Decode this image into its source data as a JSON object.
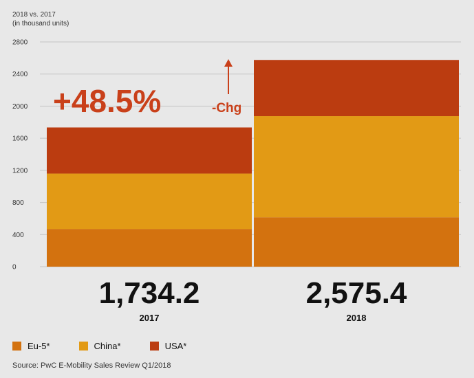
{
  "chart_data": {
    "type": "bar",
    "stacked": true,
    "subtitle_lines": [
      "2018 vs. 2017",
      "(in thousand units)"
    ],
    "categories": [
      "2017",
      "2018"
    ],
    "series": [
      {
        "name": "Eu-5*",
        "color": "#d3720f",
        "values": [
          470,
          615
        ]
      },
      {
        "name": "China*",
        "color": "#e29a15",
        "values": [
          690,
          1260
        ]
      },
      {
        "name": "USA*",
        "color": "#bb3c10",
        "values": [
          574.2,
          700.4
        ]
      }
    ],
    "totals": [
      "1,734.2",
      "2,575.4"
    ],
    "ylim": [
      0,
      2800
    ],
    "yticks": [
      0,
      400,
      800,
      1200,
      1600,
      2000,
      2400,
      2800
    ],
    "grid": true,
    "legend_position": "bottom-left",
    "annotation": {
      "value": "+48.5%",
      "label": "-Chg",
      "arrow": "up",
      "color": "#c9401a"
    },
    "source": "Source: PwC E-Mobility Sales Review Q1/2018"
  }
}
